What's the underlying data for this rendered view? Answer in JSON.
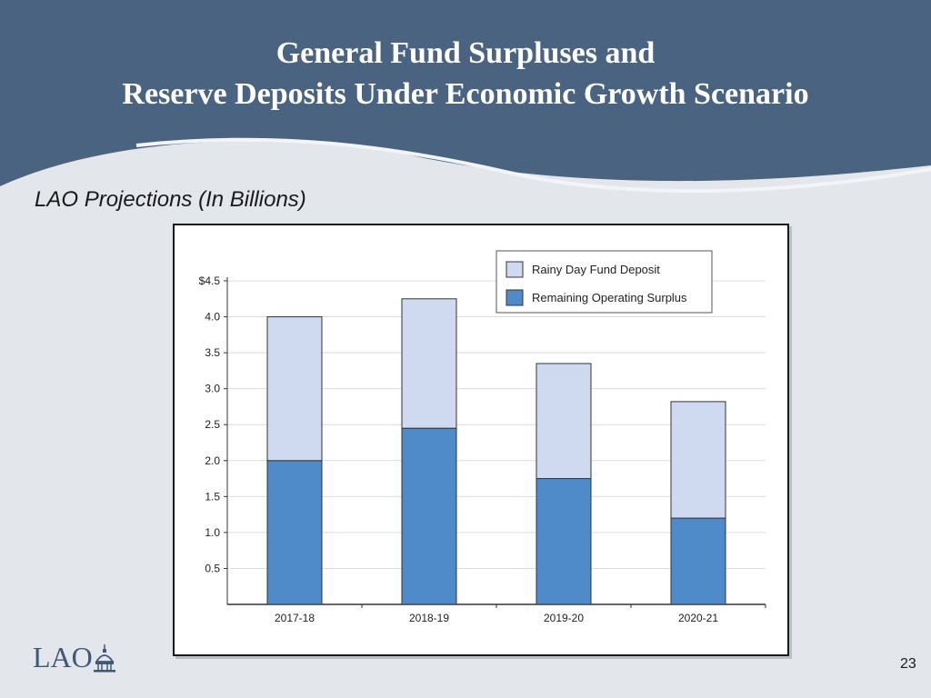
{
  "slide": {
    "title_line1": "General Fund Surpluses and",
    "title_line2": "Reserve Deposits Under Economic Growth Scenario",
    "subtitle": "LAO Projections (In Billions)",
    "page_number": "23",
    "logo_text": "LAO"
  },
  "colors": {
    "header": "#4a6380",
    "rainy_day": "#cfdaf0",
    "operating": "#4f8bc9"
  },
  "chart_data": {
    "type": "bar",
    "stacked": true,
    "title": "",
    "xlabel": "",
    "ylabel": "",
    "ylim": [
      0,
      4.5
    ],
    "y_ticks": [
      0.5,
      1.0,
      1.5,
      2.0,
      2.5,
      3.0,
      3.5,
      4.0,
      4.5
    ],
    "y_tick_labels": [
      "0.5",
      "1.0",
      "1.5",
      "2.0",
      "2.5",
      "3.0",
      "3.5",
      "4.0",
      "$4.5"
    ],
    "grid": true,
    "legend_position": "top-right",
    "categories": [
      "2017-18",
      "2018-19",
      "2019-20",
      "2020-21"
    ],
    "series": [
      {
        "name": "Remaining Operating Surplus",
        "color": "#4f8bc9",
        "values": [
          2.0,
          2.45,
          1.75,
          1.2
        ]
      },
      {
        "name": "Rainy Day Fund Deposit",
        "color": "#cfdaf0",
        "values": [
          2.0,
          1.8,
          1.6,
          1.62
        ]
      }
    ],
    "legend_order": [
      "Rainy Day Fund Deposit",
      "Remaining Operating Surplus"
    ]
  }
}
